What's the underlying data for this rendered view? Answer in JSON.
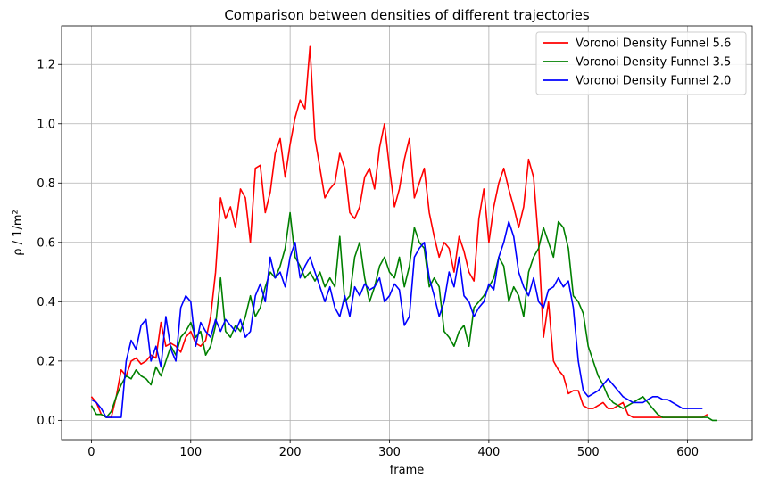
{
  "chart_data": {
    "type": "line",
    "title": "Comparison between densities of different trajectories",
    "xlabel": "frame",
    "ylabel": "ρ / 1/m²",
    "xlim": [
      -30,
      665
    ],
    "ylim": [
      -0.065,
      1.33
    ],
    "xticks": [
      0,
      100,
      200,
      300,
      400,
      500,
      600
    ],
    "yticks": [
      0.0,
      0.2,
      0.4,
      0.6,
      0.8,
      1.0,
      1.2
    ],
    "ytick_labels": [
      "0.0",
      "0.2",
      "0.4",
      "0.6",
      "0.8",
      "1.0",
      "1.2"
    ],
    "grid": true,
    "legend_position": "top-right",
    "series": [
      {
        "name": "Voronoi Density Funnel 5.6",
        "color": "#ff0000",
        "x": [
          0,
          5,
          10,
          15,
          20,
          25,
          30,
          35,
          40,
          45,
          50,
          55,
          60,
          65,
          70,
          75,
          80,
          85,
          90,
          95,
          100,
          105,
          110,
          115,
          120,
          125,
          130,
          135,
          140,
          145,
          150,
          155,
          160,
          165,
          170,
          175,
          180,
          185,
          190,
          195,
          200,
          205,
          210,
          215,
          220,
          225,
          230,
          235,
          240,
          245,
          250,
          255,
          260,
          265,
          270,
          275,
          280,
          285,
          290,
          295,
          300,
          305,
          310,
          315,
          320,
          325,
          330,
          335,
          340,
          345,
          350,
          355,
          360,
          365,
          370,
          375,
          380,
          385,
          390,
          395,
          400,
          405,
          410,
          415,
          420,
          425,
          430,
          435,
          440,
          445,
          450,
          455,
          460,
          465,
          470,
          475,
          480,
          485,
          490,
          495,
          500,
          505,
          510,
          515,
          520,
          525,
          530,
          535,
          540,
          545,
          550,
          555,
          560,
          565,
          570,
          575,
          580,
          585,
          590,
          595,
          600,
          605,
          610,
          615,
          620
        ],
        "y": [
          0.08,
          0.06,
          0.02,
          0.01,
          0.01,
          0.08,
          0.17,
          0.15,
          0.2,
          0.21,
          0.19,
          0.2,
          0.22,
          0.21,
          0.33,
          0.25,
          0.26,
          0.25,
          0.23,
          0.28,
          0.3,
          0.26,
          0.25,
          0.27,
          0.35,
          0.5,
          0.75,
          0.68,
          0.72,
          0.65,
          0.78,
          0.75,
          0.6,
          0.85,
          0.86,
          0.7,
          0.77,
          0.9,
          0.95,
          0.82,
          0.93,
          1.02,
          1.08,
          1.05,
          1.26,
          0.95,
          0.85,
          0.75,
          0.78,
          0.8,
          0.9,
          0.85,
          0.7,
          0.68,
          0.72,
          0.82,
          0.85,
          0.78,
          0.92,
          1.0,
          0.85,
          0.72,
          0.78,
          0.88,
          0.95,
          0.75,
          0.8,
          0.85,
          0.7,
          0.62,
          0.55,
          0.6,
          0.58,
          0.5,
          0.62,
          0.57,
          0.5,
          0.47,
          0.68,
          0.78,
          0.6,
          0.72,
          0.8,
          0.85,
          0.78,
          0.72,
          0.65,
          0.72,
          0.88,
          0.82,
          0.6,
          0.28,
          0.4,
          0.2,
          0.17,
          0.15,
          0.09,
          0.1,
          0.1,
          0.05,
          0.04,
          0.04,
          0.05,
          0.06,
          0.04,
          0.04,
          0.05,
          0.06,
          0.02,
          0.01,
          0.01,
          0.01,
          0.01,
          0.01,
          0.01,
          0.01,
          0.01,
          0.01,
          0.01,
          0.01,
          0.01,
          0.01,
          0.01,
          0.01,
          0.02
        ]
      },
      {
        "name": "Voronoi Density Funnel 3.5",
        "color": "#008000",
        "x": [
          0,
          5,
          10,
          15,
          20,
          25,
          30,
          35,
          40,
          45,
          50,
          55,
          60,
          65,
          70,
          75,
          80,
          85,
          90,
          95,
          100,
          105,
          110,
          115,
          120,
          125,
          130,
          135,
          140,
          145,
          150,
          155,
          160,
          165,
          170,
          175,
          180,
          185,
          190,
          195,
          200,
          205,
          210,
          215,
          220,
          225,
          230,
          235,
          240,
          245,
          250,
          255,
          260,
          265,
          270,
          275,
          280,
          285,
          290,
          295,
          300,
          305,
          310,
          315,
          320,
          325,
          330,
          335,
          340,
          345,
          350,
          355,
          360,
          365,
          370,
          375,
          380,
          385,
          390,
          395,
          400,
          405,
          410,
          415,
          420,
          425,
          430,
          435,
          440,
          445,
          450,
          455,
          460,
          465,
          470,
          475,
          480,
          485,
          490,
          495,
          500,
          505,
          510,
          515,
          520,
          525,
          530,
          535,
          540,
          545,
          550,
          555,
          560,
          565,
          570,
          575,
          580,
          585,
          590,
          595,
          600,
          605,
          610,
          615,
          620,
          625,
          630
        ],
        "y": [
          0.05,
          0.02,
          0.02,
          0.01,
          0.03,
          0.08,
          0.12,
          0.15,
          0.14,
          0.17,
          0.15,
          0.14,
          0.12,
          0.18,
          0.15,
          0.2,
          0.25,
          0.22,
          0.28,
          0.3,
          0.33,
          0.28,
          0.3,
          0.22,
          0.25,
          0.32,
          0.48,
          0.3,
          0.28,
          0.32,
          0.3,
          0.35,
          0.42,
          0.35,
          0.38,
          0.45,
          0.5,
          0.48,
          0.52,
          0.58,
          0.7,
          0.55,
          0.52,
          0.48,
          0.5,
          0.47,
          0.5,
          0.45,
          0.48,
          0.45,
          0.62,
          0.4,
          0.42,
          0.55,
          0.6,
          0.48,
          0.4,
          0.45,
          0.52,
          0.55,
          0.5,
          0.48,
          0.55,
          0.45,
          0.52,
          0.65,
          0.6,
          0.58,
          0.45,
          0.48,
          0.45,
          0.3,
          0.28,
          0.25,
          0.3,
          0.32,
          0.25,
          0.38,
          0.4,
          0.42,
          0.45,
          0.48,
          0.55,
          0.52,
          0.4,
          0.45,
          0.42,
          0.35,
          0.5,
          0.55,
          0.58,
          0.65,
          0.6,
          0.55,
          0.67,
          0.65,
          0.58,
          0.42,
          0.4,
          0.36,
          0.25,
          0.2,
          0.15,
          0.12,
          0.08,
          0.06,
          0.05,
          0.04,
          0.05,
          0.06,
          0.07,
          0.08,
          0.06,
          0.04,
          0.02,
          0.01,
          0.01,
          0.01,
          0.01,
          0.01,
          0.01,
          0.01,
          0.01,
          0.01,
          0.01,
          0.0,
          0.0
        ]
      },
      {
        "name": "Voronoi Density Funnel 2.0",
        "color": "#0000ff",
        "x": [
          0,
          5,
          10,
          15,
          20,
          25,
          30,
          35,
          40,
          45,
          50,
          55,
          60,
          65,
          70,
          75,
          80,
          85,
          90,
          95,
          100,
          105,
          110,
          115,
          120,
          125,
          130,
          135,
          140,
          145,
          150,
          155,
          160,
          165,
          170,
          175,
          180,
          185,
          190,
          195,
          200,
          205,
          210,
          215,
          220,
          225,
          230,
          235,
          240,
          245,
          250,
          255,
          260,
          265,
          270,
          275,
          280,
          285,
          290,
          295,
          300,
          305,
          310,
          315,
          320,
          325,
          330,
          335,
          340,
          345,
          350,
          355,
          360,
          365,
          370,
          375,
          380,
          385,
          390,
          395,
          400,
          405,
          410,
          415,
          420,
          425,
          430,
          435,
          440,
          445,
          450,
          455,
          460,
          465,
          470,
          475,
          480,
          485,
          490,
          495,
          500,
          505,
          510,
          515,
          520,
          525,
          530,
          535,
          540,
          545,
          550,
          555,
          560,
          565,
          570,
          575,
          580,
          585,
          590,
          595,
          600,
          605,
          610,
          615
        ],
        "y": [
          0.07,
          0.06,
          0.04,
          0.01,
          0.01,
          0.01,
          0.01,
          0.2,
          0.27,
          0.24,
          0.32,
          0.34,
          0.2,
          0.25,
          0.18,
          0.35,
          0.24,
          0.2,
          0.38,
          0.42,
          0.4,
          0.25,
          0.33,
          0.3,
          0.28,
          0.34,
          0.3,
          0.34,
          0.32,
          0.3,
          0.34,
          0.28,
          0.3,
          0.42,
          0.46,
          0.4,
          0.55,
          0.48,
          0.5,
          0.45,
          0.55,
          0.6,
          0.48,
          0.52,
          0.55,
          0.5,
          0.45,
          0.4,
          0.45,
          0.38,
          0.35,
          0.42,
          0.35,
          0.45,
          0.42,
          0.46,
          0.44,
          0.45,
          0.48,
          0.4,
          0.42,
          0.46,
          0.44,
          0.32,
          0.35,
          0.55,
          0.58,
          0.6,
          0.48,
          0.42,
          0.35,
          0.4,
          0.5,
          0.45,
          0.55,
          0.42,
          0.4,
          0.35,
          0.38,
          0.4,
          0.46,
          0.44,
          0.55,
          0.6,
          0.67,
          0.62,
          0.5,
          0.45,
          0.42,
          0.48,
          0.4,
          0.38,
          0.44,
          0.45,
          0.48,
          0.45,
          0.47,
          0.38,
          0.2,
          0.1,
          0.08,
          0.09,
          0.1,
          0.12,
          0.14,
          0.12,
          0.1,
          0.08,
          0.07,
          0.06,
          0.06,
          0.06,
          0.07,
          0.08,
          0.08,
          0.07,
          0.07,
          0.06,
          0.05,
          0.04,
          0.04,
          0.04,
          0.04,
          0.04
        ]
      }
    ]
  }
}
